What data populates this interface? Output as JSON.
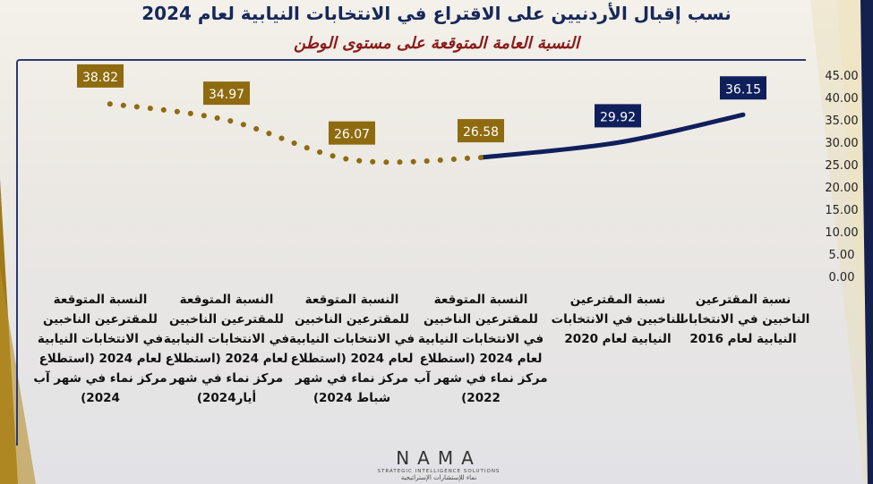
{
  "title": "نسب إقبال الأردنيين على الاقتراع في الانتخابات النيابية لعام 2024",
  "subtitle": "النسبة العامة المتوقعة على مستوى الوطن",
  "colors": {
    "actual": "#0f1f5c",
    "projected": "#8f6b10",
    "title": "#16285a",
    "subtitle": "#8a1c1c"
  },
  "chart_data": {
    "type": "line",
    "title": "نسب إقبال الأردنيين على الاقتراع في الانتخابات النيابية لعام 2024",
    "subtitle": "النسبة العامة المتوقعة على مستوى الوطن",
    "y_axis_position": "right",
    "ylim": [
      0,
      45
    ],
    "yticks": [
      "0.00",
      "5.00",
      "10.00",
      "15.00",
      "20.00",
      "25.00",
      "30.00",
      "35.00",
      "40.00",
      "45.00"
    ],
    "grid": false,
    "categories": [
      "نسبة المقترعين الناخبين في الانتخابات النيابية لعام 2016",
      "نسبة المقترعين الناخبين في الانتخابات النيابية لعام 2020",
      "النسبة المتوقعة للمقترعين الناخبين في الانتخابات النيابية لعام 2024 (استطلاع مركز نماء في شهر آب 2022)",
      "النسبة المتوقعة للمقترعين الناخبين في الانتخابات النيابية لعام 2024 (استطلاع مركز نماء في شهر شباط 2024)",
      "النسبة المتوقعة للمقترعين الناخبين في الانتخابات النيابية لعام 2024 (استطلاع مركز نماء في شهر أيار2024)",
      "النسبة المتوقعة للمقترعين الناخبين في الانتخابات النيابية لعام 2024 (استطلاع مركز نماء في شهر آب 2024)"
    ],
    "values": [
      36.15,
      29.92,
      26.58,
      26.07,
      34.97,
      38.82
    ],
    "value_labels": [
      "36.15",
      "29.92",
      "26.58",
      "26.07",
      "34.97",
      "38.82"
    ],
    "actual_points": [
      0,
      1,
      2
    ],
    "projected_points": [
      2,
      3,
      4,
      5
    ]
  },
  "logo": {
    "name": "NAMA",
    "tagline": "STRATEGIC INTELLIGENCE SOLUTIONS",
    "arabic": "نماء للإستشارات الإستراتيجية"
  }
}
